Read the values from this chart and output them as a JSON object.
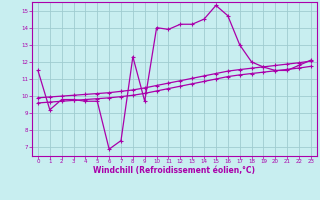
{
  "background_color": "#c8eef0",
  "plot_bg_color": "#c8eef0",
  "grid_color": "#a0ccd0",
  "line_color": "#aa00aa",
  "xlabel": "Windchill (Refroidissement éolien,°C)",
  "xlim": [
    -0.5,
    23.5
  ],
  "ylim": [
    6.5,
    15.5
  ],
  "yticks": [
    7,
    8,
    9,
    10,
    11,
    12,
    13,
    14,
    15
  ],
  "xticks": [
    0,
    1,
    2,
    3,
    4,
    5,
    6,
    7,
    8,
    9,
    10,
    11,
    12,
    13,
    14,
    15,
    16,
    17,
    18,
    19,
    20,
    21,
    22,
    23
  ],
  "curve1_x": [
    0,
    1,
    2,
    3,
    4,
    5,
    6,
    7,
    8,
    9,
    10,
    11,
    12,
    13,
    14,
    15,
    16,
    17,
    18,
    19,
    20,
    21,
    22,
    23
  ],
  "curve1_y": [
    11.5,
    9.2,
    9.8,
    9.8,
    9.7,
    9.7,
    6.9,
    7.4,
    12.3,
    9.7,
    14.0,
    13.9,
    14.2,
    14.2,
    14.5,
    15.3,
    14.7,
    13.0,
    12.0,
    11.7,
    11.5,
    11.5,
    11.8,
    12.1
  ],
  "curve2_x": [
    0,
    1,
    2,
    3,
    4,
    5,
    6,
    7,
    8,
    9,
    10,
    11,
    12,
    13,
    14,
    15,
    16,
    17,
    18,
    19,
    20,
    21,
    22,
    23
  ],
  "curve2_y": [
    9.9,
    9.95,
    10.0,
    10.05,
    10.1,
    10.15,
    10.2,
    10.28,
    10.36,
    10.48,
    10.62,
    10.76,
    10.9,
    11.04,
    11.18,
    11.32,
    11.46,
    11.55,
    11.63,
    11.71,
    11.79,
    11.87,
    11.95,
    12.05
  ],
  "curve3_x": [
    0,
    1,
    2,
    3,
    4,
    5,
    6,
    7,
    8,
    9,
    10,
    11,
    12,
    13,
    14,
    15,
    16,
    17,
    18,
    19,
    20,
    21,
    22,
    23
  ],
  "curve3_y": [
    9.6,
    9.65,
    9.7,
    9.75,
    9.8,
    9.85,
    9.9,
    9.97,
    10.05,
    10.16,
    10.3,
    10.44,
    10.58,
    10.72,
    10.86,
    11.0,
    11.14,
    11.24,
    11.32,
    11.4,
    11.48,
    11.56,
    11.64,
    11.74
  ],
  "marker": "+",
  "markersize": 3.5,
  "linewidth": 0.9
}
